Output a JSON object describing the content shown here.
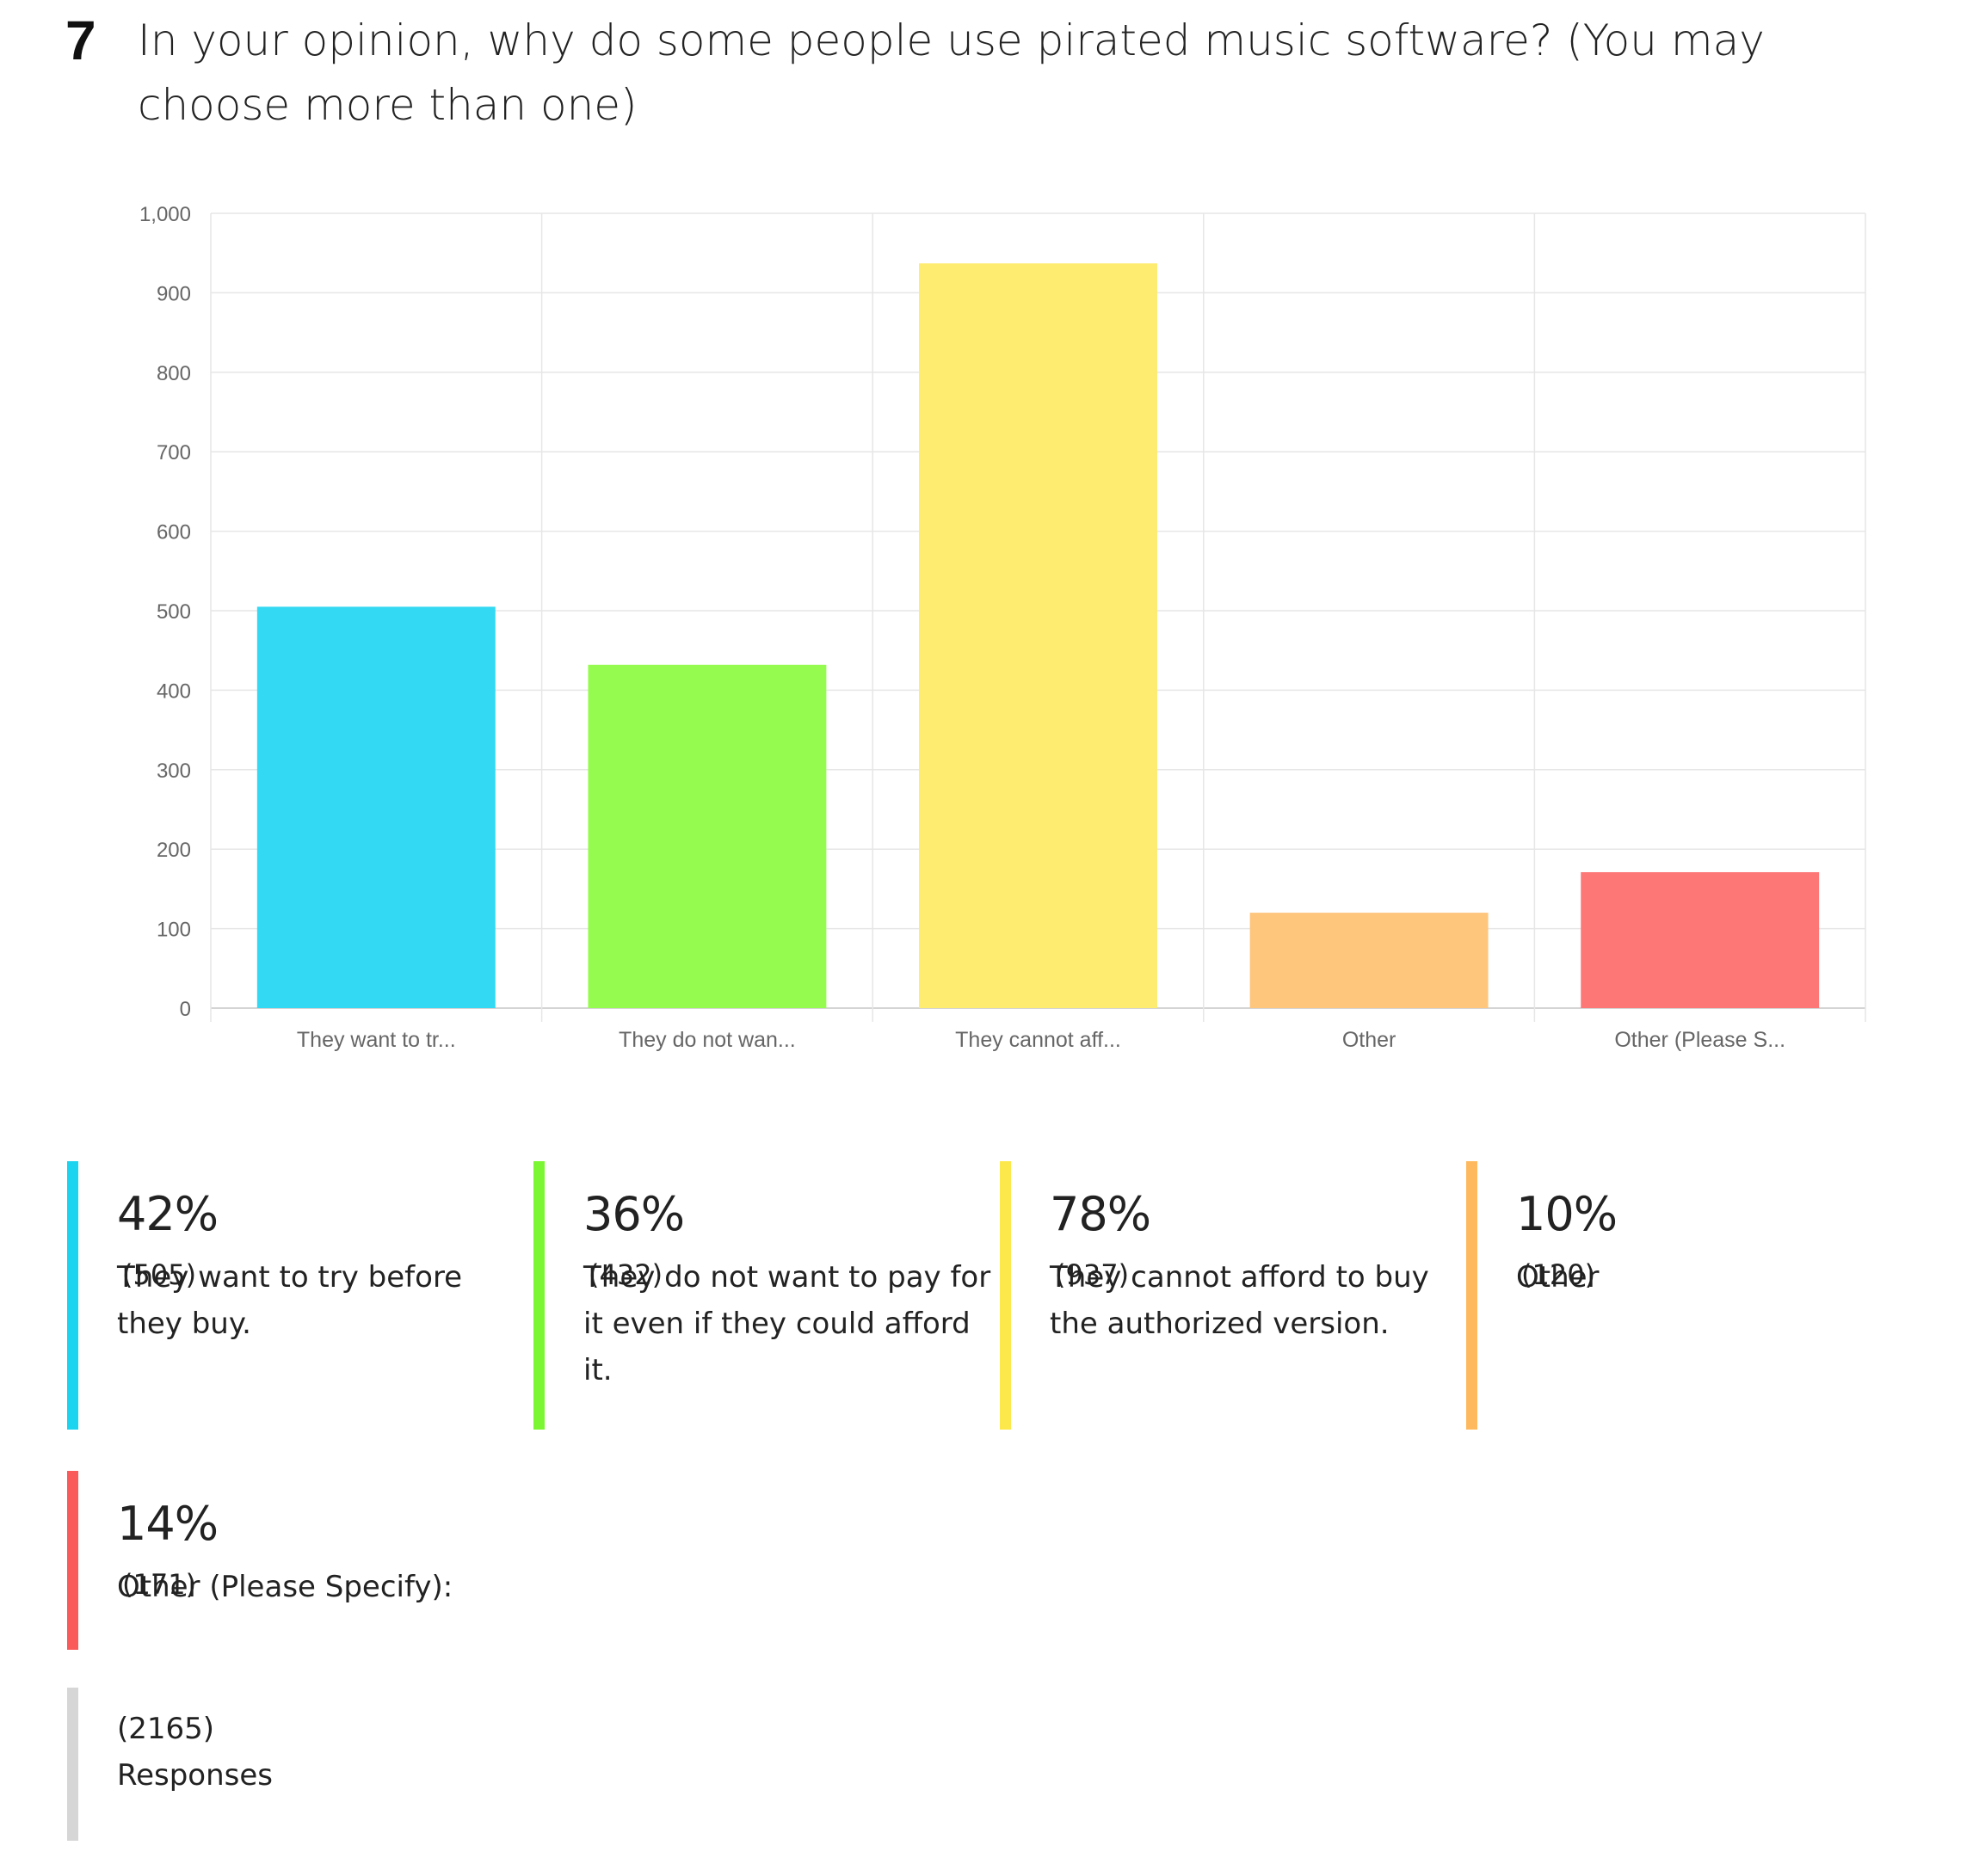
{
  "question": {
    "number": "7",
    "text": "In your opinion, why do some people use pirated music software? (You may choose more than one)"
  },
  "chart_data": {
    "type": "bar",
    "categories": [
      "They want to tr...",
      "They do not wan...",
      "They cannot aff...",
      "Other",
      "Other (Please S..."
    ],
    "values": [
      505,
      432,
      937,
      120,
      171
    ],
    "colors": [
      "#33d9f2",
      "#95fc4f",
      "#fdec70",
      "#fec57d",
      "#fe7777"
    ],
    "ylim": [
      0,
      1000
    ],
    "yticks": [
      "0",
      "100",
      "200",
      "300",
      "400",
      "500",
      "600",
      "700",
      "800",
      "900",
      "1,000"
    ],
    "grid": true
  },
  "legend": [
    {
      "pct": "42%",
      "count": "(505)",
      "label": "They want to try before they buy.",
      "color": "#1ad4f0"
    },
    {
      "pct": "36%",
      "count": "(432)",
      "label": "They do not want to pay for it even if they could afford it.",
      "color": "#7bf632"
    },
    {
      "pct": "78%",
      "count": "(937)",
      "label": "They cannot afford to buy the authorized version.",
      "color": "#fde84c"
    },
    {
      "pct": "10%",
      "count": "(120)",
      "label": "Other",
      "color": "#feb95e"
    },
    {
      "pct": "14%",
      "count": "(171)",
      "label": "Other (Please Specify):",
      "color": "#fa5a5a"
    }
  ],
  "responses": {
    "count": "(2165)",
    "label": "Responses",
    "color": "#d6d6d6"
  }
}
